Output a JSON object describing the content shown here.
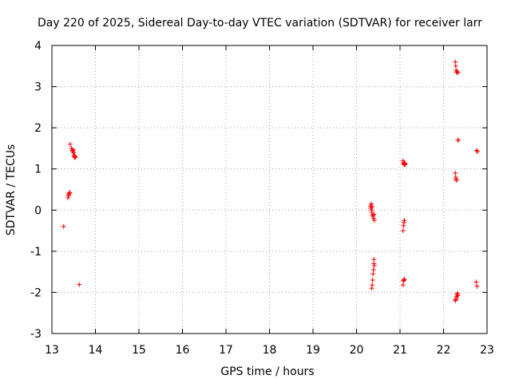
{
  "chart_data": {
    "type": "scatter",
    "title": "Day 220 of 2025, Sidereal Day-to-day VTEC variation (SDTVAR) for receiver larr",
    "xlabel": "GPS time / hours",
    "ylabel": "SDTVAR / TECUs",
    "xlim": [
      13,
      23
    ],
    "ylim": [
      -3,
      4
    ],
    "xticks": [
      "13",
      "14",
      "15",
      "16",
      "17",
      "18",
      "19",
      "20",
      "21",
      "22",
      "23"
    ],
    "yticks": [
      "-3",
      "-2",
      "-1",
      "0",
      "1",
      "2",
      "3",
      "4"
    ],
    "grid": true,
    "marker": "+",
    "colors": {
      "series": "#ff0000",
      "grid": "#a0a0a0",
      "axis": "#000000"
    },
    "series": [
      {
        "name": "SDTVAR",
        "x": [
          13.27,
          13.37,
          13.38,
          13.39,
          13.4,
          13.41,
          13.42,
          13.45,
          13.47,
          13.48,
          13.49,
          13.5,
          13.51,
          13.52,
          13.52,
          13.53,
          13.54,
          13.63,
          20.32,
          20.33,
          20.34,
          20.35,
          20.35,
          20.36,
          20.37,
          20.38,
          20.39,
          20.4,
          20.41,
          20.35,
          20.36,
          20.37,
          20.38,
          20.39,
          20.4,
          20.4,
          20.41,
          21.07,
          21.08,
          21.09,
          21.1,
          21.1,
          21.11,
          21.12,
          21.07,
          21.08,
          21.09,
          21.1,
          21.07,
          21.08,
          21.09,
          21.1,
          22.27,
          22.28,
          22.29,
          22.3,
          22.31,
          22.33,
          22.27,
          22.28,
          22.29,
          22.3,
          22.31,
          22.32,
          22.33,
          22.27,
          22.28,
          22.29,
          22.3,
          22.33,
          22.34,
          22.75,
          22.77,
          22.76,
          22.78
        ],
        "y": [
          -0.4,
          0.3,
          0.35,
          0.38,
          0.41,
          0.43,
          1.6,
          1.5,
          1.45,
          1.42,
          1.47,
          1.4,
          1.33,
          1.28,
          1.32,
          1.3,
          1.28,
          -1.81,
          0.1,
          0.05,
          0.15,
          0.0,
          -0.05,
          0.08,
          -0.12,
          -0.15,
          -0.2,
          -0.1,
          -0.25,
          -1.9,
          -1.82,
          -1.7,
          -1.55,
          -1.45,
          -1.3,
          -1.2,
          -1.35,
          1.2,
          1.15,
          1.12,
          1.1,
          1.13,
          1.14,
          1.11,
          -0.5,
          -0.38,
          -0.3,
          -0.25,
          -1.82,
          -1.72,
          -1.7,
          -1.68,
          3.6,
          3.5,
          3.4,
          3.35,
          3.36,
          3.34,
          -2.2,
          -2.18,
          -2.15,
          -2.1,
          -2.05,
          -2.02,
          -2.08,
          0.9,
          0.8,
          0.75,
          0.72,
          1.7,
          1.7,
          -1.75,
          -1.85,
          1.45,
          1.42
        ]
      }
    ]
  }
}
